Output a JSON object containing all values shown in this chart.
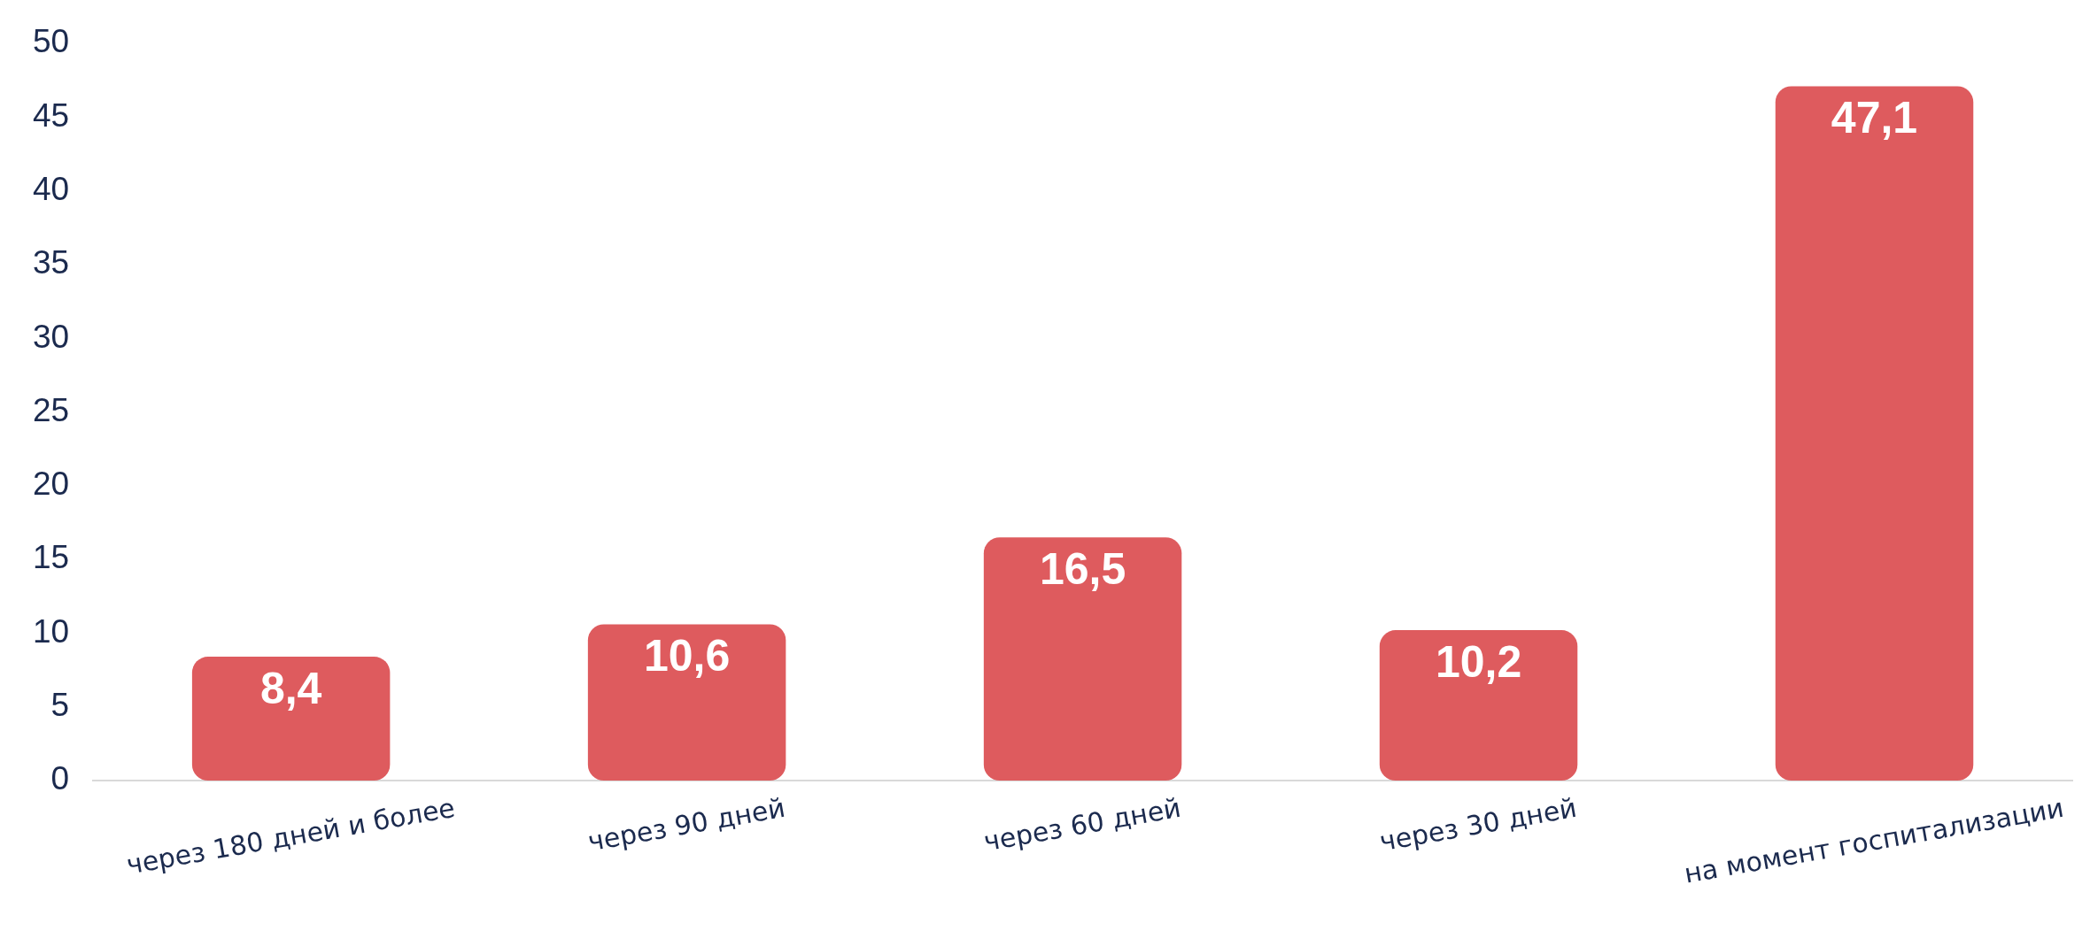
{
  "chart_data": {
    "type": "bar",
    "categories": [
      "через 180 дней и более",
      "через 90 дней",
      "через 60 дней",
      "через 30 дней",
      "на момент госпитализации"
    ],
    "values": [
      8.4,
      10.6,
      16.5,
      10.2,
      47.1
    ],
    "value_labels": [
      "8,4",
      "10,6",
      "16,5",
      "10,2",
      "47,1"
    ],
    "color": "#de5b5e",
    "ylim": [
      0,
      50
    ],
    "yticks": [
      0,
      5,
      10,
      15,
      20,
      25,
      30,
      35,
      40,
      45,
      50
    ],
    "grid": false
  }
}
